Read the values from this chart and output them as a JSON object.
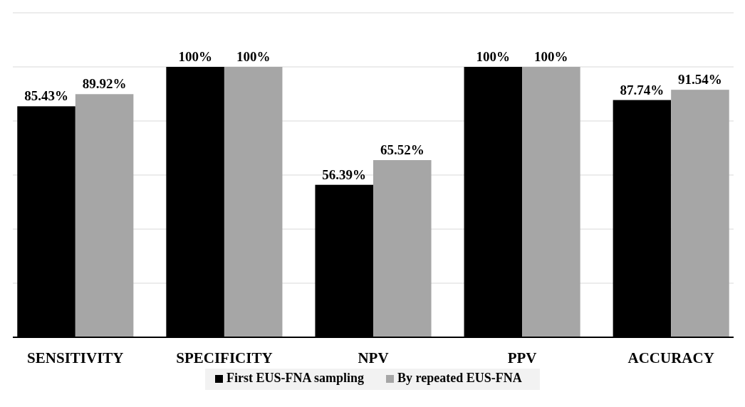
{
  "chart_data": {
    "type": "bar",
    "categories": [
      "SENSITIVITY",
      "SPECIFICITY",
      "NPV",
      "PPV",
      "ACCURACY"
    ],
    "series": [
      {
        "name": "First EUS-FNA sampling",
        "color": "#000000",
        "values": [
          85.43,
          100,
          56.39,
          100,
          87.74
        ],
        "value_labels": [
          "85.43%",
          "100%",
          "56.39%",
          "100%",
          "87.74%"
        ]
      },
      {
        "name": "By repeated EUS-FNA",
        "color": "#a6a6a6",
        "values": [
          89.92,
          100,
          65.52,
          100,
          91.54
        ],
        "value_labels": [
          "89.92%",
          "100%",
          "65.52%",
          "100%",
          "91.54%"
        ]
      }
    ],
    "ylim": [
      0,
      120
    ],
    "yticks": [
      {
        "value": 0,
        "label": null
      },
      {
        "value": 20,
        "label": null
      },
      {
        "value": 40,
        "label": null
      },
      {
        "value": 60,
        "label": null
      },
      {
        "value": 80,
        "label": null
      },
      {
        "value": 100,
        "label": null
      },
      {
        "value": 120,
        "label": null
      }
    ],
    "grid": "y",
    "tick_labels": "x",
    "legend": "bottom"
  }
}
